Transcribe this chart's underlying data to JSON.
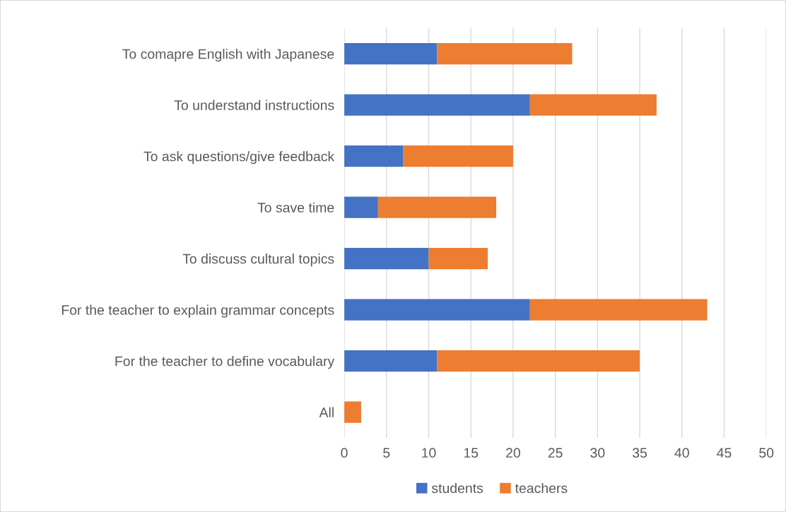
{
  "chart_data": {
    "type": "bar",
    "orientation": "horizontal",
    "stacked": true,
    "categories": [
      "To comapre English with Japanese",
      "To understand instructions",
      "To ask questions/give feedback",
      "To save time",
      "To discuss cultural topics",
      "For the teacher to explain grammar concepts",
      "For the teacher to define vocabulary",
      "All"
    ],
    "series": [
      {
        "name": "students",
        "color": "#4472c4",
        "values": [
          11,
          22,
          7,
          4,
          10,
          22,
          11,
          0
        ]
      },
      {
        "name": "teachers",
        "color": "#ed7d31",
        "values": [
          16,
          15,
          13,
          14,
          7,
          21,
          24,
          2
        ]
      }
    ],
    "xlim": [
      0,
      50
    ],
    "xticks": [
      0,
      5,
      10,
      15,
      20,
      25,
      30,
      35,
      40,
      45,
      50
    ],
    "grid": "x",
    "legend": "bottom"
  }
}
